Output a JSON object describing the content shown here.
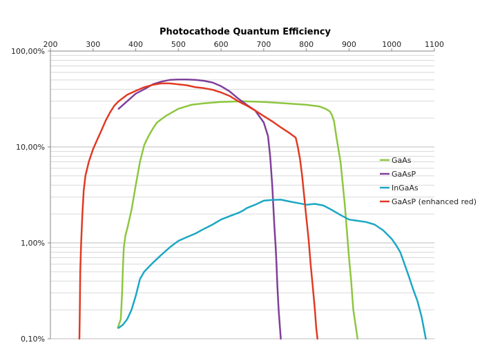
{
  "chart_data": {
    "type": "line",
    "title": "Photocathode Quantum Efficiency",
    "xlabel": "",
    "ylabel": "",
    "x_scale": "linear",
    "y_scale": "log",
    "xlim": [
      200,
      1100
    ],
    "ylim": [
      0.1,
      100
    ],
    "x_ticks": [
      200,
      300,
      400,
      500,
      600,
      700,
      800,
      900,
      1000,
      1100
    ],
    "x_tick_labels": [
      "200",
      "300",
      "400",
      "500",
      "600",
      "700",
      "800",
      "900",
      "1000",
      "1100"
    ],
    "y_ticks": [
      0.1,
      1,
      10,
      100
    ],
    "y_tick_labels": [
      "0,10%",
      "1,00%",
      "10,00%",
      "100,00%"
    ],
    "x_axis_position": "top",
    "grid": true,
    "legend_position": "right",
    "series": [
      {
        "name": "GaAs",
        "color": "#8dc63f",
        "x": [
          358,
          365,
          368,
          370,
          372,
          376,
          380,
          390,
          400,
          410,
          420,
          430,
          440,
          450,
          470,
          500,
          530,
          560,
          600,
          650,
          700,
          750,
          800,
          830,
          845,
          855,
          860,
          865,
          870,
          880,
          890,
          900,
          905,
          910,
          920
        ],
        "y": [
          0.13,
          0.16,
          0.3,
          0.55,
          0.9,
          1.2,
          1.4,
          2.2,
          4.0,
          7.0,
          10.5,
          13.0,
          15.5,
          18.0,
          21.0,
          25.0,
          27.5,
          28.5,
          29.5,
          30.0,
          29.5,
          28.5,
          27.5,
          26.5,
          25.0,
          23.5,
          21.5,
          18.5,
          13.0,
          7.0,
          2.5,
          0.7,
          0.4,
          0.2,
          0.1
        ]
      },
      {
        "name": "GaAsP",
        "color": "#7e3f98",
        "x": [
          360,
          380,
          400,
          420,
          440,
          460,
          480,
          500,
          520,
          540,
          560,
          580,
          600,
          620,
          640,
          660,
          680,
          700,
          710,
          715,
          720,
          725,
          728,
          730,
          732,
          735,
          738,
          740
        ],
        "y": [
          25.0,
          30.0,
          36.0,
          40.0,
          45.0,
          48.0,
          50.0,
          50.5,
          50.5,
          50.0,
          49.0,
          47.0,
          43.0,
          38.0,
          32.0,
          27.5,
          24.0,
          18.0,
          13.0,
          8.0,
          4.0,
          1.5,
          0.9,
          0.6,
          0.35,
          0.2,
          0.13,
          0.1
        ]
      },
      {
        "name": "InGaAs",
        "color": "#1ba7c4",
        "x": [
          360,
          370,
          380,
          390,
          400,
          410,
          420,
          440,
          460,
          480,
          500,
          520,
          540,
          560,
          580,
          600,
          620,
          640,
          650,
          660,
          680,
          700,
          720,
          740,
          760,
          780,
          800,
          820,
          840,
          860,
          880,
          900,
          920,
          940,
          960,
          980,
          1000,
          1010,
          1020,
          1030,
          1040,
          1050,
          1060,
          1070,
          1080
        ],
        "y": [
          0.13,
          0.14,
          0.16,
          0.2,
          0.28,
          0.42,
          0.5,
          0.62,
          0.75,
          0.9,
          1.05,
          1.15,
          1.25,
          1.4,
          1.55,
          1.75,
          1.9,
          2.05,
          2.15,
          2.3,
          2.5,
          2.75,
          2.8,
          2.82,
          2.7,
          2.6,
          2.5,
          2.55,
          2.45,
          2.2,
          1.95,
          1.75,
          1.7,
          1.65,
          1.55,
          1.35,
          1.1,
          0.95,
          0.8,
          0.6,
          0.45,
          0.33,
          0.25,
          0.17,
          0.1
        ]
      },
      {
        "name": "GaAsP (enhanced red)",
        "color": "#e03a22",
        "x": [
          268,
          269,
          270,
          272,
          275,
          278,
          282,
          290,
          300,
          310,
          320,
          330,
          340,
          350,
          360,
          380,
          400,
          420,
          440,
          460,
          480,
          500,
          520,
          540,
          560,
          580,
          600,
          620,
          640,
          660,
          680,
          700,
          720,
          740,
          760,
          775,
          780,
          785,
          790,
          795,
          800,
          805,
          810,
          815,
          820,
          823,
          826
        ],
        "y": [
          0.1,
          0.2,
          0.5,
          1.0,
          2.0,
          3.5,
          5.0,
          7.0,
          9.5,
          12.0,
          15.0,
          19.0,
          23.0,
          27.0,
          30.0,
          35.0,
          38.5,
          42.0,
          44.5,
          46.0,
          46.0,
          45.0,
          44.0,
          42.0,
          41.0,
          39.5,
          37.0,
          34.0,
          30.0,
          27.0,
          24.0,
          21.0,
          18.5,
          16.0,
          14.0,
          12.5,
          10.0,
          7.5,
          5.0,
          3.0,
          1.8,
          1.1,
          0.6,
          0.35,
          0.2,
          0.13,
          0.1
        ]
      }
    ]
  }
}
